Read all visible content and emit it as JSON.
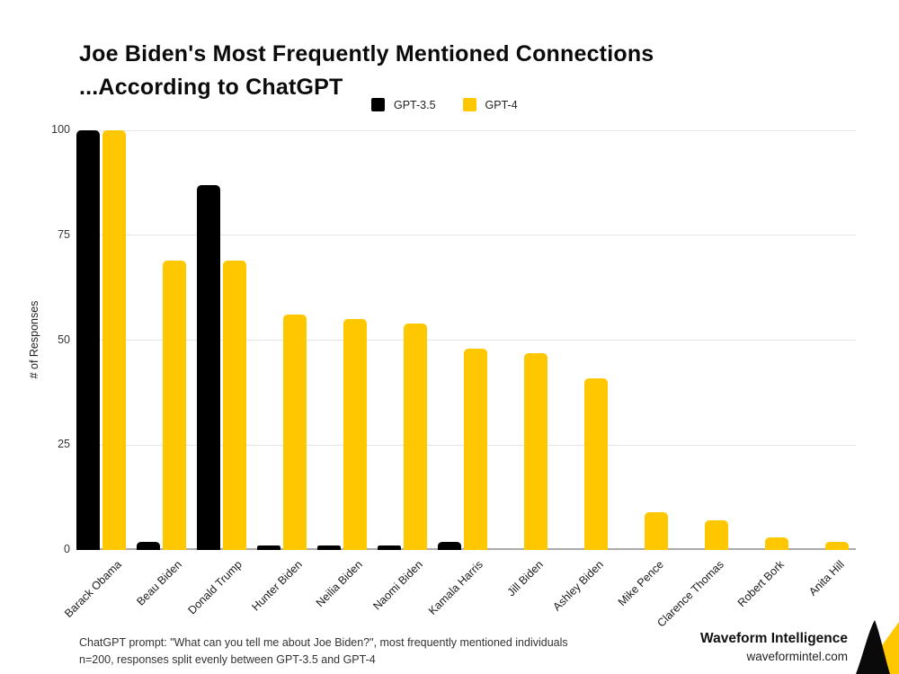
{
  "header": {
    "title_line1": "Joe Biden's Most Frequently Mentioned Connections",
    "title_line2": "...According to ChatGPT"
  },
  "legend": {
    "items": [
      {
        "label": "GPT-3.5",
        "color": "#000000"
      },
      {
        "label": "GPT-4",
        "color": "#FFC700"
      }
    ]
  },
  "chart_data": {
    "type": "bar",
    "title": "Joe Biden's Most Frequently Mentioned Connections ...According to ChatGPT",
    "categories": [
      "Barack Obama",
      "Beau Biden",
      "Donald Trump",
      "Hunter Biden",
      "Neilia Biden",
      "Naomi Biden",
      "Kamala Harris",
      "Jill Biden",
      "Ashley Biden",
      "Mike Pence",
      "Clarence Thomas",
      "Robert Bork",
      "Anita Hill"
    ],
    "series": [
      {
        "name": "GPT-3.5",
        "color": "#000000",
        "values": [
          100,
          2,
          87,
          1,
          1,
          1,
          2,
          0,
          0,
          0,
          0,
          0,
          0
        ]
      },
      {
        "name": "GPT-4",
        "color": "#FFC700",
        "values": [
          100,
          69,
          69,
          56,
          55,
          54,
          48,
          47,
          41,
          9,
          7,
          3,
          2
        ]
      }
    ],
    "xlabel": "",
    "ylabel": "# of Responses",
    "yticks": [
      0,
      25,
      50,
      75,
      100
    ],
    "ylim": [
      0,
      100
    ],
    "grid": true,
    "legend_position": "top-center"
  },
  "footer": {
    "note_line1": "ChatGPT prompt: \"What can you tell me about Joe Biden?\", most frequently mentioned individuals",
    "note_line2": "n=200, responses split evenly between GPT-3.5 and GPT-4",
    "brand_name": "Waveform Intelligence",
    "brand_url": "waveformintel.com"
  },
  "colors": {
    "background": "#ffffff",
    "gridline": "#e4e4e4",
    "baseline": "#ababab",
    "gpt35": "#000000",
    "gpt4": "#FFC700",
    "logo_black": "#0a0a0a",
    "logo_yellow": "#FFC700"
  }
}
